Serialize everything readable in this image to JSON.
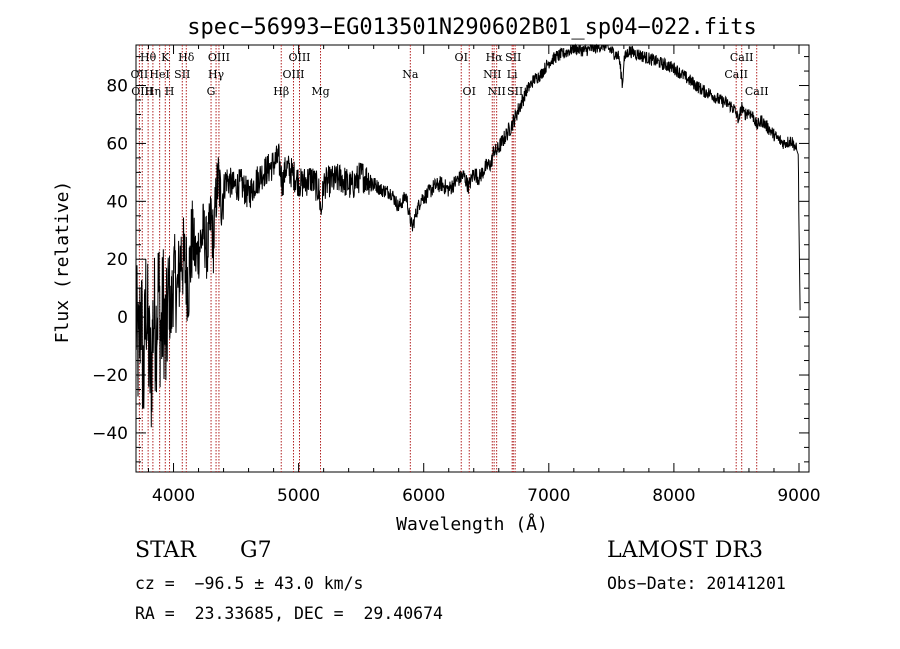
{
  "chart_data": {
    "type": "line",
    "title": "spec−56993−EG013501N290602B01_sp04−022.fits",
    "xlabel": "Wavelength (Å)",
    "ylabel": "Flux (relative)",
    "xlim": [
      3700,
      9080
    ],
    "ylim": [
      -53.5,
      94
    ],
    "xticks": [
      4000,
      5000,
      6000,
      7000,
      8000,
      9000
    ],
    "xtick_labels": [
      "4000",
      "5000",
      "6000",
      "7000",
      "8000",
      "9000"
    ],
    "yticks": [
      -40,
      -20,
      0,
      20,
      40,
      60,
      80
    ],
    "ytick_labels": [
      "−40",
      "−20",
      "0",
      "20",
      "40",
      "60",
      "80"
    ],
    "series": [
      {
        "name": "flux",
        "x": [
          3700,
          3720,
          3740,
          3760,
          3780,
          3800,
          3820,
          3840,
          3860,
          3880,
          3900,
          3920,
          3940,
          3960,
          3980,
          4000,
          4030,
          4060,
          4090,
          4120,
          4150,
          4180,
          4210,
          4240,
          4270,
          4300,
          4320,
          4340,
          4360,
          4380,
          4420,
          4480,
          4540,
          4600,
          4660,
          4720,
          4780,
          4840,
          4870,
          4900,
          4960,
          5020,
          5100,
          5160,
          5180,
          5200,
          5260,
          5340,
          5420,
          5500,
          5580,
          5660,
          5740,
          5800,
          5860,
          5890,
          5910,
          5940,
          5980,
          6020,
          6080,
          6140,
          6200,
          6260,
          6320,
          6360,
          6400,
          6440,
          6500,
          6540,
          6562,
          6580,
          6620,
          6660,
          6700,
          6760,
          6820,
          6880,
          6940,
          7000,
          7060,
          7120,
          7200,
          7280,
          7360,
          7440,
          7500,
          7560,
          7590,
          7600,
          7640,
          7700,
          7760,
          7820,
          7880,
          7940,
          8000,
          8060,
          8120,
          8180,
          8240,
          8300,
          8360,
          8420,
          8480,
          8520,
          8542,
          8560,
          8600,
          8640,
          8662,
          8700,
          8760,
          8820,
          8880,
          8940,
          8980,
          8995,
          9000,
          9010
        ],
        "y": [
          0,
          -15,
          5,
          -25,
          8,
          -10,
          -22,
          2,
          -5,
          10,
          -8,
          5,
          -12,
          12,
          0,
          15,
          8,
          22,
          18,
          12,
          28,
          20,
          25,
          30,
          22,
          35,
          25,
          42,
          48,
          40,
          48,
          45,
          46,
          42,
          47,
          50,
          52,
          55,
          46,
          52,
          49,
          46,
          48,
          44,
          36,
          46,
          47,
          48,
          45,
          49,
          47,
          44,
          43,
          38,
          42,
          34,
          31,
          36,
          41,
          42,
          45,
          46,
          44,
          47,
          49,
          45,
          50,
          48,
          52,
          53,
          58,
          57,
          60,
          63,
          66,
          72,
          78,
          82,
          84,
          88,
          90,
          91,
          93,
          92,
          93,
          94,
          92,
          90,
          80,
          89,
          92,
          91,
          90,
          89,
          88,
          87,
          86,
          84,
          82,
          80,
          78,
          77,
          75,
          74,
          72,
          68,
          73,
          70,
          71,
          69,
          66,
          68,
          65,
          62,
          60,
          61,
          58,
          56,
          30,
          0
        ]
      }
    ],
    "lines": [
      {
        "wave": 3727,
        "label": "OII",
        "row": 2
      },
      {
        "wave": 3750,
        "label": "OIII",
        "row": 3
      },
      {
        "wave": 3797,
        "label": "Hθ",
        "row": 1
      },
      {
        "wave": 3835,
        "label": "Hη",
        "row": 3
      },
      {
        "wave": 3889,
        "label": "HeI",
        "row": 2
      },
      {
        "wave": 3934,
        "label": "K",
        "row": 1
      },
      {
        "wave": 3968,
        "label": "H",
        "row": 3
      },
      {
        "wave": 4070,
        "label": "SII",
        "row": 2
      },
      {
        "wave": 4102,
        "label": "Hδ",
        "row": 1
      },
      {
        "wave": 4300,
        "label": "G",
        "row": 3
      },
      {
        "wave": 4340,
        "label": "Hγ",
        "row": 2
      },
      {
        "wave": 4363,
        "label": "OIII",
        "row": 1
      },
      {
        "wave": 4861,
        "label": "Hβ",
        "row": 3
      },
      {
        "wave": 4959,
        "label": "OIII",
        "row": 2
      },
      {
        "wave": 5007,
        "label": "OIII",
        "row": 1
      },
      {
        "wave": 5175,
        "label": "Mg",
        "row": 3
      },
      {
        "wave": 5893,
        "label": "Na",
        "row": 2
      },
      {
        "wave": 6300,
        "label": "OI",
        "row": 1
      },
      {
        "wave": 6364,
        "label": "OI",
        "row": 3
      },
      {
        "wave": 6548,
        "label": "NII",
        "row": 2
      },
      {
        "wave": 6563,
        "label": "Hα",
        "row": 1
      },
      {
        "wave": 6583,
        "label": "NII",
        "row": 3
      },
      {
        "wave": 6707,
        "label": "Li",
        "row": 2
      },
      {
        "wave": 6716,
        "label": "SII",
        "row": 1
      },
      {
        "wave": 6731,
        "label": "SII",
        "row": 3
      },
      {
        "wave": 8498,
        "label": "CaII",
        "row": 2
      },
      {
        "wave": 8542,
        "label": "CaII",
        "row": 1
      },
      {
        "wave": 8662,
        "label": "CaII",
        "row": 3
      }
    ]
  },
  "info": {
    "object_class": "STAR",
    "subclass": "G7",
    "redshift": "cz =  −96.5 ± 43.0 km/s",
    "coords": "RA =  23.33685, DEC =  29.40674",
    "survey": "LAMOST DR3",
    "obs_date": "Obs−Date: 20141201"
  }
}
